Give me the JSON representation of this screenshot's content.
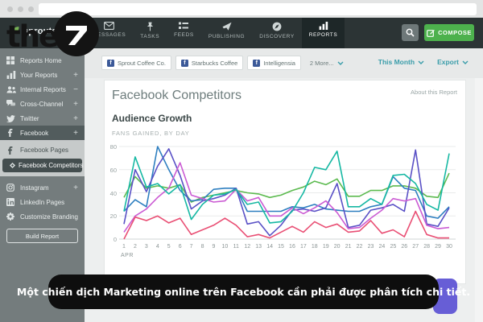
{
  "colors": {
    "nav_bg": "#2c3435",
    "nav_active_bg": "#1e2728",
    "sidebar_bg": "#747c7d",
    "accent_teal": "#3a9daa",
    "compose_green": "#4db14d",
    "facebook_blue": "#3b5998",
    "caption_bg": "#0e0e0e",
    "purple_button": "#675ed6"
  },
  "brand_overlay": {
    "the": "the",
    "seven": "7"
  },
  "browser": {
    "window_controls": [
      "dot",
      "dot",
      "dot"
    ],
    "address_value": ""
  },
  "nav": {
    "logo_text": "sproutsocial",
    "items": [
      {
        "label": "MESSAGES",
        "icon": "envelope-icon",
        "active": false
      },
      {
        "label": "TASKS",
        "icon": "pushpin-icon",
        "active": false
      },
      {
        "label": "FEEDS",
        "icon": "feeds-icon",
        "active": false
      },
      {
        "label": "PUBLISHING",
        "icon": "paper-plane-icon",
        "active": false
      },
      {
        "label": "DISCOVERY",
        "icon": "compass-icon",
        "active": false
      },
      {
        "label": "REPORTS",
        "icon": "bar-chart-icon",
        "active": true
      }
    ],
    "compose_label": "COMPOSE"
  },
  "sidebar": {
    "items": [
      {
        "label": "Reports Home",
        "icon": "grid-icon",
        "expander": ""
      },
      {
        "label": "Your Reports",
        "icon": "bar-chart-icon",
        "expander": "+"
      },
      {
        "label": "Internal Reports",
        "icon": "people-icon",
        "expander": "−"
      },
      {
        "label": "Cross-Channel",
        "icon": "chat-icon",
        "expander": "+"
      },
      {
        "label": "Twitter",
        "icon": "twitter-icon",
        "expander": "+"
      },
      {
        "label": "Facebook",
        "icon": "facebook-icon",
        "expander": "+",
        "active": true
      }
    ],
    "submenu": [
      {
        "label": "Facebook Pages",
        "icon": "facebook-icon",
        "selected": false
      },
      {
        "label": "Facebook Competitors",
        "icon": "diamond-icon",
        "selected": true
      }
    ],
    "items_lower": [
      {
        "label": "Instagram",
        "icon": "instagram-icon",
        "expander": "+"
      },
      {
        "label": "LinkedIn Pages",
        "icon": "linkedin-icon",
        "expander": ""
      },
      {
        "label": "Customize Branding",
        "icon": "gear-icon",
        "expander": ""
      }
    ],
    "build_report_label": "Build Report"
  },
  "toolbar": {
    "tabs": [
      {
        "label": "Sprout Coffee Co."
      },
      {
        "label": "Starbucks Coffee"
      },
      {
        "label": "Intelligensia"
      }
    ],
    "more_label": "2 More...",
    "range_label": "This Month",
    "export_label": "Export"
  },
  "report": {
    "title": "Facebook Competitors",
    "about_label": "About this Report",
    "section_title": "Audience Growth",
    "section_subtitle": "FANS GAINED, BY DAY"
  },
  "chart_data": {
    "type": "line",
    "title": "Audience Growth",
    "subtitle": "FANS GAINED, BY DAY",
    "x_axis_label": "APR",
    "x": [
      1,
      2,
      3,
      4,
      5,
      6,
      7,
      8,
      9,
      10,
      11,
      12,
      13,
      14,
      15,
      16,
      17,
      18,
      19,
      20,
      21,
      22,
      23,
      24,
      25,
      26,
      27,
      28,
      29,
      30
    ],
    "yticks": [
      0,
      20,
      40,
      60,
      80
    ],
    "ylim": [
      0,
      80
    ],
    "grid": true,
    "legend_position": "none",
    "series": [
      {
        "name": "green",
        "color": "#5cba4f",
        "values": [
          36,
          54,
          44,
          46,
          44,
          47,
          32,
          36,
          38,
          40,
          42,
          40,
          39,
          36,
          38,
          42,
          45,
          50,
          47,
          52,
          37,
          37,
          42,
          42,
          46,
          46,
          44,
          37,
          36,
          57
        ]
      },
      {
        "name": "blue",
        "color": "#2e7fc0",
        "values": [
          24,
          34,
          28,
          80,
          60,
          42,
          33,
          34,
          43,
          44,
          44,
          24,
          24,
          24,
          24,
          28,
          27,
          30,
          26,
          25,
          24,
          24,
          28,
          30,
          54,
          44,
          42,
          20,
          18,
          28
        ]
      },
      {
        "name": "indigo",
        "color": "#5a51c6",
        "values": [
          13,
          60,
          41,
          63,
          78,
          55,
          26,
          33,
          35,
          38,
          44,
          13,
          15,
          3,
          12,
          25,
          26,
          24,
          27,
          48,
          10,
          12,
          25,
          27,
          30,
          24,
          77,
          13,
          11,
          27
        ]
      },
      {
        "name": "magenta",
        "color": "#cb5bd3",
        "values": [
          6,
          20,
          26,
          36,
          44,
          66,
          38,
          35,
          32,
          33,
          43,
          33,
          36,
          20,
          20,
          27,
          22,
          27,
          33,
          23,
          9,
          10,
          18,
          25,
          35,
          33,
          35,
          12,
          9,
          10
        ]
      },
      {
        "name": "teal",
        "color": "#16b8a3",
        "values": [
          24,
          71,
          45,
          48,
          39,
          47,
          17,
          30,
          38,
          39,
          43,
          30,
          32,
          14,
          15,
          24,
          40,
          62,
          60,
          76,
          28,
          28,
          35,
          30,
          55,
          56,
          48,
          30,
          25,
          74
        ]
      },
      {
        "name": "red",
        "color": "#e94f74",
        "values": [
          0,
          19,
          16,
          20,
          14,
          18,
          4,
          8,
          12,
          18,
          12,
          2,
          4,
          1,
          6,
          11,
          6,
          15,
          10,
          13,
          6,
          7,
          16,
          5,
          8,
          2,
          24,
          4,
          1,
          1
        ]
      }
    ]
  },
  "caption": {
    "text": "Một chiến dịch Marketing online trên Facebook cần phải được phân tích chi tiết."
  }
}
